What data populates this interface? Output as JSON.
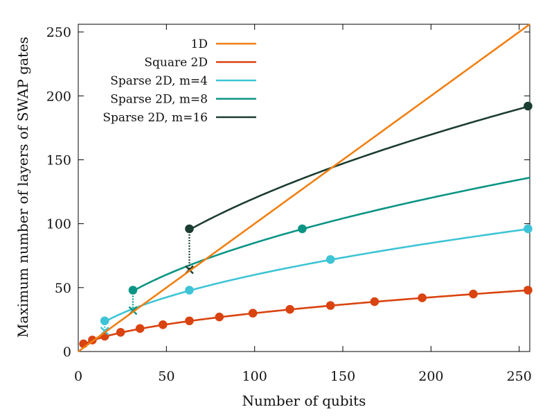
{
  "chart_data": {
    "type": "line",
    "title": "",
    "xlabel": "Number of qubits",
    "ylabel": "Maximum number of layers of SWAP gates",
    "xlim": [
      0,
      256
    ],
    "ylim": [
      0,
      256
    ],
    "xticks": [
      0,
      50,
      100,
      150,
      200,
      250
    ],
    "yticks": [
      0,
      50,
      100,
      150,
      200,
      250
    ],
    "grid": false,
    "legend_position": "top-left",
    "series": [
      {
        "name": "1D",
        "color": "#f07f12",
        "curve": "y = x",
        "curve_x_range": [
          0,
          256
        ],
        "points": []
      },
      {
        "name": "Square 2D",
        "color": "#d94310",
        "curve": "y = 3*sqrt(x)",
        "curve_x_range": [
          3,
          256
        ],
        "points": [
          {
            "x": 3,
            "y": 6
          },
          {
            "x": 8,
            "y": 9
          },
          {
            "x": 15,
            "y": 12
          },
          {
            "x": 24,
            "y": 15
          },
          {
            "x": 35,
            "y": 18
          },
          {
            "x": 48,
            "y": 21
          },
          {
            "x": 63,
            "y": 24
          },
          {
            "x": 80,
            "y": 27
          },
          {
            "x": 99,
            "y": 30
          },
          {
            "x": 120,
            "y": 33
          },
          {
            "x": 143,
            "y": 36
          },
          {
            "x": 168,
            "y": 39
          },
          {
            "x": 195,
            "y": 42
          },
          {
            "x": 224,
            "y": 45
          },
          {
            "x": 255,
            "y": 48
          }
        ]
      },
      {
        "name": "Sparse 2D, m=4",
        "color": "#3dc4d6",
        "curve": "y = 6*sqrt(x)",
        "curve_x_range": [
          15,
          256
        ],
        "points": [
          {
            "x": 15,
            "y": 24
          },
          {
            "x": 63,
            "y": 48
          },
          {
            "x": 143,
            "y": 72
          },
          {
            "x": 255,
            "y": 96
          }
        ],
        "drop": {
          "x": 15,
          "from": 24,
          "to": 16
        }
      },
      {
        "name": "Sparse 2D, m=8",
        "color": "#0a9484",
        "curve": "y = 8.5*sqrt(x)",
        "curve_x_range": [
          31,
          256
        ],
        "points": [
          {
            "x": 31,
            "y": 48
          },
          {
            "x": 127,
            "y": 96
          }
        ],
        "drop": {
          "x": 31,
          "from": 48,
          "to": 32
        }
      },
      {
        "name": "Sparse 2D, m=16",
        "color": "#1c3d31",
        "curve": "y = 12*sqrt(x)",
        "curve_x_range": [
          63,
          256
        ],
        "points": [
          {
            "x": 63,
            "y": 96
          },
          {
            "x": 255,
            "y": 192
          }
        ],
        "drop": {
          "x": 63,
          "from": 96,
          "to": 64
        }
      }
    ]
  }
}
